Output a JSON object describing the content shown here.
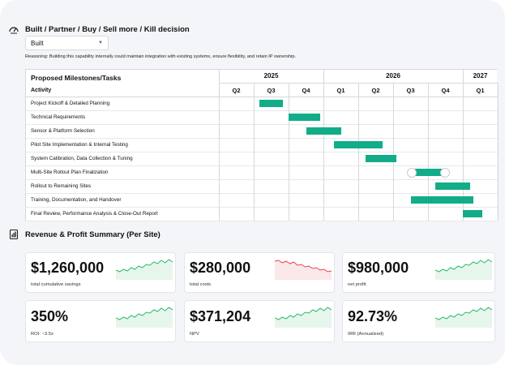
{
  "decision": {
    "title": "Built / Partner / Buy / Sell more / Kill decision",
    "icon": "gauge-icon",
    "selected": "Built",
    "reasoning": "Reasoning: Building this capability internally could maintain integration with existing systems, ensure flexibility, and retain IP ownership."
  },
  "gantt": {
    "title": "Proposed Milestones/Tasks",
    "activity_header": "Activity",
    "years": [
      "2025",
      "2026",
      "2027"
    ],
    "quarters": [
      "Q2",
      "Q3",
      "Q4",
      "Q1",
      "Q2",
      "Q3",
      "Q4",
      "Q1"
    ],
    "tasks": [
      {
        "name": "Project Kickoff & Detailed Planning",
        "start": 1.17,
        "end": 1.83
      },
      {
        "name": "Technical Requirements",
        "start": 2.0,
        "end": 2.9
      },
      {
        "name": "Sensor & Platform Selection",
        "start": 2.5,
        "end": 3.5
      },
      {
        "name": "Pilot Site Implementation & Internal Testing",
        "start": 3.3,
        "end": 4.7
      },
      {
        "name": "System Calibration, Data Collection & Tuning",
        "start": 4.2,
        "end": 5.1
      },
      {
        "name": "Multi-Site Rollout Plan Finalization",
        "start": 5.5,
        "end": 6.5
      },
      {
        "name": "Rollout to Remaining Sites",
        "start": 6.2,
        "end": 7.2
      },
      {
        "name": "Training, Documentation, and Handover",
        "start": 5.5,
        "end": 7.3
      },
      {
        "name": "Final Review, Performance Analysis & Close-Out Report",
        "start": 7.0,
        "end": 7.55
      }
    ]
  },
  "summary": {
    "title": "Revenue & Profit Summary (Per Site)",
    "icon": "report-icon",
    "metrics": [
      {
        "value": "$1,260,000",
        "label": "total cumulative savings",
        "trend": "up",
        "color": "#2fb86a"
      },
      {
        "value": "$280,000",
        "label": "total costs",
        "trend": "down",
        "color": "#e0454f"
      },
      {
        "value": "$980,000",
        "label": "net profit",
        "trend": "up",
        "color": "#2fb86a"
      },
      {
        "value": "350%",
        "label": "ROI: ~3.5x",
        "trend": "up",
        "color": "#2fb86a"
      },
      {
        "value": "$371,204",
        "label": "NPV",
        "trend": "up",
        "color": "#2fb86a"
      },
      {
        "value": "92.73%",
        "label": "IRR (Annualized)",
        "trend": "up",
        "color": "#2fb86a"
      }
    ]
  }
}
